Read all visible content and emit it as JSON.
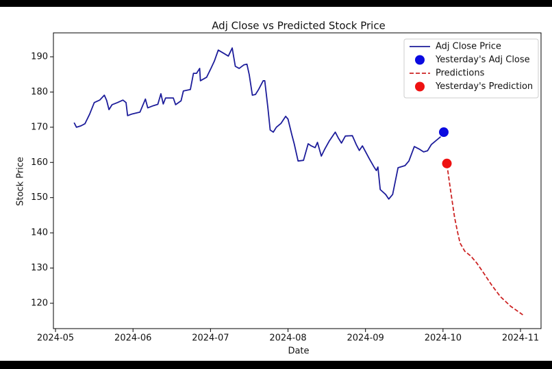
{
  "chart_data": {
    "type": "line",
    "title": "Adj Close vs Predicted Stock Price",
    "x_label": "Date",
    "y_label": "Stock Price",
    "xlim": [
      4.973,
      11.265
    ],
    "ylim": [
      112.8,
      196.8
    ],
    "xticks": [
      {
        "value": 5,
        "label": "2024-05"
      },
      {
        "value": 6,
        "label": "2024-06"
      },
      {
        "value": 7,
        "label": "2024-07"
      },
      {
        "value": 8,
        "label": "2024-08"
      },
      {
        "value": 9,
        "label": "2024-09"
      },
      {
        "value": 10,
        "label": "2024-10"
      },
      {
        "value": 11,
        "label": "2024-11"
      }
    ],
    "yticks": [
      120,
      130,
      140,
      150,
      160,
      170,
      180,
      190
    ],
    "grid": false,
    "legend": "upper right",
    "series": [
      {
        "name": "Adj Close Price",
        "color": "#1c1c9a",
        "style": "solid",
        "x": [
          5.24,
          5.27,
          5.33,
          5.38,
          5.44,
          5.5,
          5.57,
          5.63,
          5.66,
          5.69,
          5.73,
          5.8,
          5.87,
          5.91,
          5.93,
          5.98,
          6.09,
          6.16,
          6.19,
          6.26,
          6.32,
          6.36,
          6.39,
          6.42,
          6.52,
          6.55,
          6.62,
          6.65,
          6.74,
          6.78,
          6.82,
          6.86,
          6.87,
          6.95,
          7.01,
          7.05,
          7.1,
          7.17,
          7.23,
          7.28,
          7.32,
          7.37,
          7.43,
          7.47,
          7.5,
          7.54,
          7.58,
          7.62,
          7.68,
          7.7,
          7.74,
          7.77,
          7.81,
          7.85,
          7.91,
          7.97,
          8.0,
          8.05,
          8.08,
          8.13,
          8.2,
          8.26,
          8.3,
          8.35,
          8.38,
          8.43,
          8.47,
          8.53,
          8.61,
          8.65,
          8.69,
          8.74,
          8.83,
          8.88,
          8.92,
          8.96,
          9.05,
          9.11,
          9.14,
          9.16,
          9.19,
          9.26,
          9.3,
          9.35,
          9.42,
          9.51,
          9.56,
          9.63,
          9.7,
          9.75,
          9.8,
          9.85,
          9.97
        ],
        "values": [
          171.3,
          170,
          170.4,
          171,
          173.7,
          177,
          177.7,
          179.1,
          177.6,
          175,
          176.4,
          177,
          177.7,
          177,
          173.3,
          173.7,
          174.3,
          178,
          175.5,
          176.1,
          176.5,
          179.5,
          176.6,
          178.3,
          178.3,
          176.4,
          177.5,
          180.3,
          180.7,
          185.3,
          185.3,
          186.7,
          183.2,
          184.2,
          186.9,
          188.8,
          191.9,
          191,
          190.2,
          192.5,
          187.3,
          186.7,
          187.7,
          187.9,
          184.9,
          179.1,
          179.3,
          180.7,
          183.2,
          183.2,
          175.6,
          169.2,
          168.6,
          170,
          171.1,
          173.1,
          172.3,
          167.8,
          165.3,
          160.4,
          160.6,
          165.3,
          164.7,
          164.2,
          165.7,
          161.8,
          163.6,
          166,
          168.6,
          166.9,
          165.5,
          167.5,
          167.6,
          165.1,
          163.4,
          164.7,
          161,
          158.7,
          157.7,
          158.7,
          152.3,
          150.9,
          149.6,
          150.9,
          158.5,
          159.1,
          160.4,
          164.5,
          163.7,
          163,
          163.3,
          165.1,
          167.3
        ]
      },
      {
        "name": "Yesterday's Adj Close",
        "color": "#0a0ae0",
        "style": "marker",
        "x": [
          10.01
        ],
        "values": [
          168.6
        ]
      },
      {
        "name": "Predictions",
        "color": "#cc2222",
        "style": "dashed",
        "x": [
          10.05,
          10.1,
          10.15,
          10.19,
          10.22,
          10.28,
          10.36,
          10.44,
          10.53,
          10.63,
          10.74,
          10.87,
          11.03
        ],
        "values": [
          159.5,
          151.7,
          144.3,
          140,
          137.1,
          134.8,
          133.4,
          131.3,
          128.4,
          125.1,
          121.9,
          119.2,
          116.7
        ]
      },
      {
        "name": "Yesterday's Prediction",
        "color": "#ee1111",
        "style": "marker",
        "x": [
          10.05
        ],
        "values": [
          159.7
        ]
      }
    ]
  }
}
